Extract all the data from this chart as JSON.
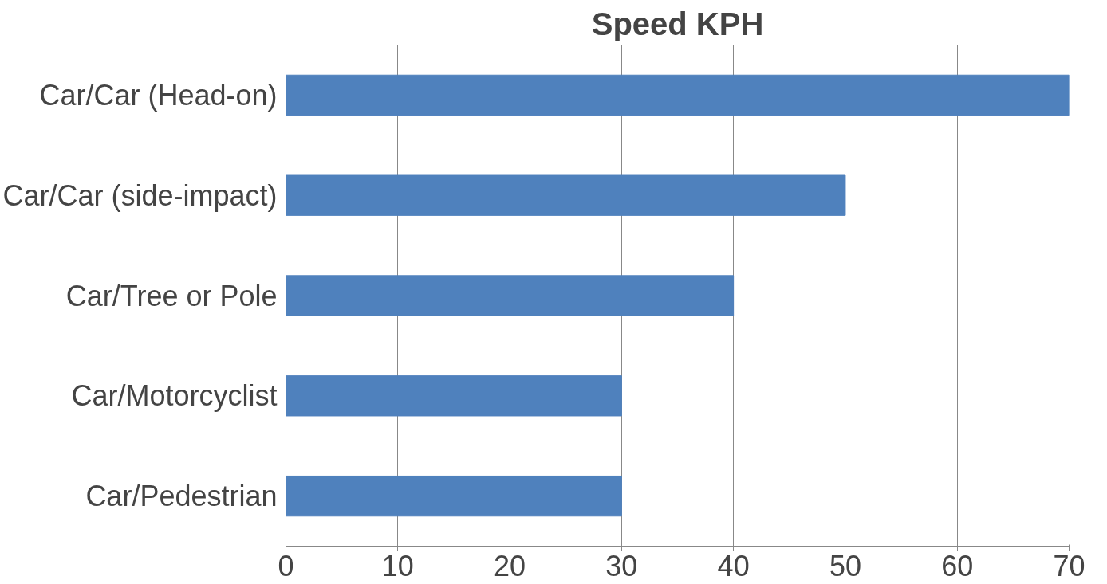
{
  "chart_data": {
    "type": "bar",
    "orientation": "horizontal",
    "title": "Speed KPH",
    "categories": [
      "Car/Car (Head-on)",
      "Car/Car (side-impact)",
      "Car/Tree or Pole",
      "Car/Motorcyclist",
      "Car/Pedestrian"
    ],
    "values": [
      70,
      50,
      40,
      30,
      30
    ],
    "color": "#4f81bd",
    "xlim": [
      0,
      70
    ],
    "xticks": [
      0,
      10,
      20,
      30,
      40,
      50,
      60,
      70
    ],
    "grid": "x"
  }
}
